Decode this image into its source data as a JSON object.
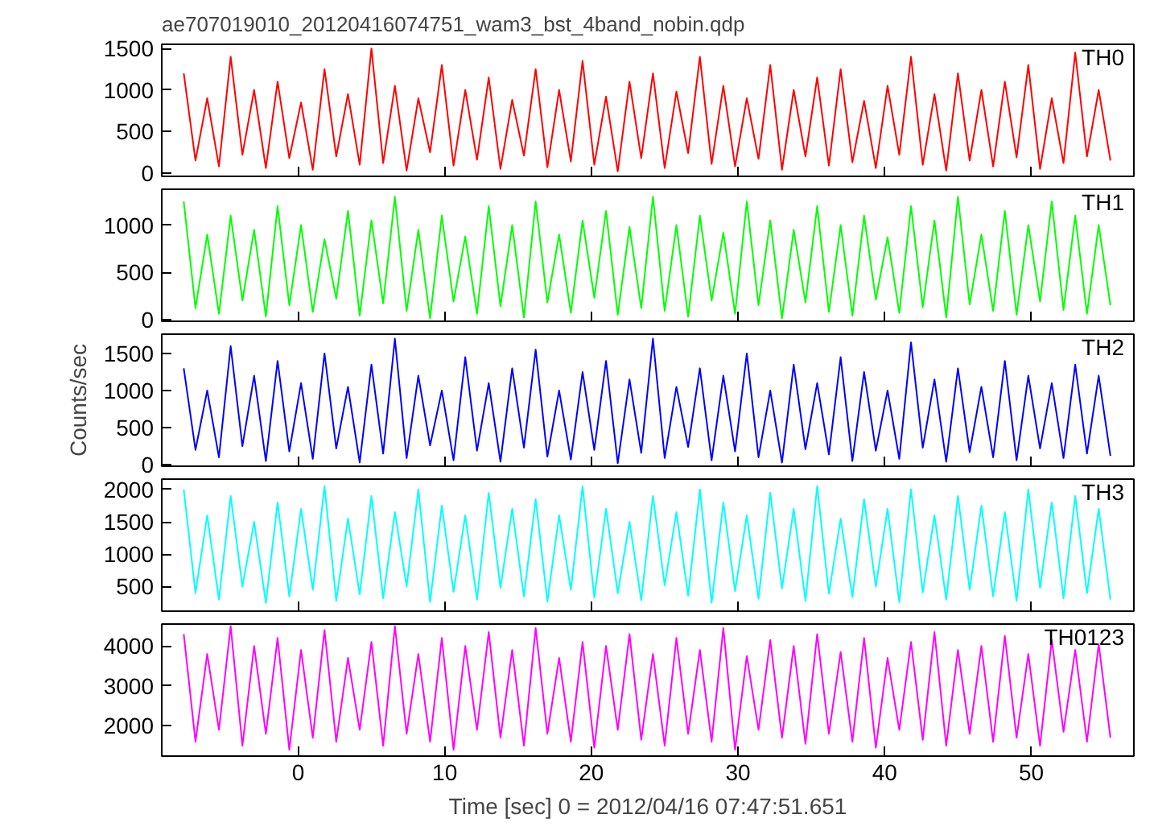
{
  "chart_data": [
    {
      "type": "line",
      "title": "ae707019010_20120416074751_wam3_bst_4band_nobin.qdp",
      "xlim": [
        -9.3,
        57
      ],
      "xticks": [
        0,
        10,
        20,
        30,
        40,
        50
      ],
      "ylim": [
        -40,
        1550
      ],
      "yticks": [
        0,
        500,
        1000,
        1500
      ],
      "tick_labels": "y",
      "grid": false,
      "series": [
        {
          "name": "TH0",
          "color": "#ff0000",
          "x": [
            -7.8,
            -7,
            -6.2,
            -5.4,
            -4.6,
            -3.8,
            -3,
            -2.2,
            -1.4,
            -0.6,
            0.2,
            1,
            1.8,
            2.6,
            3.4,
            4.2,
            5,
            5.8,
            6.6,
            7.4,
            8.2,
            9,
            9.8,
            10.6,
            11.4,
            12.2,
            13,
            13.8,
            14.6,
            15.4,
            16.2,
            17,
            17.8,
            18.6,
            19.4,
            20.2,
            21,
            21.8,
            22.6,
            23.4,
            24.2,
            25,
            25.8,
            26.6,
            27.4,
            28.2,
            29,
            29.8,
            30.6,
            31.4,
            32.2,
            33,
            33.8,
            34.6,
            35.4,
            36.2,
            37,
            37.8,
            38.6,
            39.4,
            40.2,
            41,
            41.8,
            42.6,
            43.4,
            44.2,
            45,
            45.8,
            46.6,
            47.4,
            48.2,
            49,
            49.8,
            50.6,
            51.4,
            52.2,
            53,
            53.8,
            54.6,
            55.4
          ],
          "values": [
            1200,
            150,
            900,
            80,
            1400,
            220,
            1000,
            60,
            1100,
            180,
            850,
            40,
            1250,
            200,
            950,
            100,
            1500,
            120,
            1050,
            30,
            900,
            250,
            1300,
            90,
            1000,
            160,
            1150,
            50,
            880,
            210,
            1250,
            70,
            1000,
            140,
            1350,
            100,
            920,
            20,
            1100,
            180,
            1200,
            60,
            980,
            240,
            1400,
            110,
            1050,
            80,
            900,
            170,
            1300,
            40,
            1000,
            200,
            1150,
            90,
            1250,
            130,
            870,
            60,
            1050,
            220,
            1400,
            100,
            950,
            30,
            1200,
            150,
            1000,
            80,
            1100,
            190,
            1300,
            50,
            900,
            120,
            1450,
            200,
            1000,
            150
          ]
        }
      ]
    },
    {
      "type": "line",
      "xlim": [
        -9.3,
        57
      ],
      "xticks": [
        0,
        10,
        20,
        30,
        40,
        50
      ],
      "ylim": [
        -20,
        1380
      ],
      "yticks": [
        0,
        500,
        1000
      ],
      "tick_labels": "y",
      "grid": false,
      "series": [
        {
          "name": "TH1",
          "color": "#00ff00",
          "x": [
            -7.8,
            -7,
            -6.2,
            -5.4,
            -4.6,
            -3.8,
            -3,
            -2.2,
            -1.4,
            -0.6,
            0.2,
            1,
            1.8,
            2.6,
            3.4,
            4.2,
            5,
            5.8,
            6.6,
            7.4,
            8.2,
            9,
            9.8,
            10.6,
            11.4,
            12.2,
            13,
            13.8,
            14.6,
            15.4,
            16.2,
            17,
            17.8,
            18.6,
            19.4,
            20.2,
            21,
            21.8,
            22.6,
            23.4,
            24.2,
            25,
            25.8,
            26.6,
            27.4,
            28.2,
            29,
            29.8,
            30.6,
            31.4,
            32.2,
            33,
            33.8,
            34.6,
            35.4,
            36.2,
            37,
            37.8,
            38.6,
            39.4,
            40.2,
            41,
            41.8,
            42.6,
            43.4,
            44.2,
            45,
            45.8,
            46.6,
            47.4,
            48.2,
            49,
            49.8,
            50.6,
            51.4,
            52.2,
            53,
            53.8,
            54.6,
            55.4
          ],
          "values": [
            1250,
            120,
            900,
            60,
            1100,
            200,
            950,
            30,
            1200,
            150,
            1000,
            80,
            850,
            220,
            1150,
            40,
            1050,
            170,
            1300,
            90,
            950,
            10,
            1100,
            190,
            880,
            60,
            1200,
            140,
            1000,
            20,
            1250,
            180,
            900,
            70,
            1050,
            230,
            1150,
            50,
            980,
            120,
            1300,
            90,
            1000,
            30,
            1100,
            200,
            920,
            60,
            1250,
            150,
            1050,
            10,
            950,
            180,
            1200,
            80,
            1000,
            40,
            1100,
            210,
            870,
            70,
            1200,
            130,
            1050,
            20,
            1300,
            160,
            900,
            90,
            1150,
            50,
            1000,
            190,
            1250,
            100,
            1100,
            60,
            1000,
            150
          ]
        }
      ]
    },
    {
      "type": "line",
      "ylabel": "Counts/sec",
      "xlim": [
        -9.3,
        57
      ],
      "xticks": [
        0,
        10,
        20,
        30,
        40,
        50
      ],
      "ylim": [
        -20,
        1760
      ],
      "yticks": [
        0,
        500,
        1000,
        1500
      ],
      "tick_labels": "y",
      "grid": false,
      "series": [
        {
          "name": "TH2",
          "color": "#0000ff",
          "x": [
            -7.8,
            -7,
            -6.2,
            -5.4,
            -4.6,
            -3.8,
            -3,
            -2.2,
            -1.4,
            -0.6,
            0.2,
            1,
            1.8,
            2.6,
            3.4,
            4.2,
            5,
            5.8,
            6.6,
            7.4,
            8.2,
            9,
            9.8,
            10.6,
            11.4,
            12.2,
            13,
            13.8,
            14.6,
            15.4,
            16.2,
            17,
            17.8,
            18.6,
            19.4,
            20.2,
            21,
            21.8,
            22.6,
            23.4,
            24.2,
            25,
            25.8,
            26.6,
            27.4,
            28.2,
            29,
            29.8,
            30.6,
            31.4,
            32.2,
            33,
            33.8,
            34.6,
            35.4,
            36.2,
            37,
            37.8,
            38.6,
            39.4,
            40.2,
            41,
            41.8,
            42.6,
            43.4,
            44.2,
            45,
            45.8,
            46.6,
            47.4,
            48.2,
            49,
            49.8,
            50.6,
            51.4,
            52.2,
            53,
            53.8,
            54.6,
            55.4
          ],
          "values": [
            1300,
            200,
            1000,
            100,
            1600,
            250,
            1200,
            50,
            1400,
            180,
            1100,
            80,
            1500,
            220,
            1050,
            30,
            1350,
            150,
            1700,
            90,
            1200,
            260,
            1000,
            60,
            1450,
            190,
            1100,
            40,
            1300,
            230,
            1550,
            110,
            1000,
            70,
            1250,
            200,
            1400,
            20,
            1150,
            160,
            1700,
            90,
            1050,
            240,
            1300,
            60,
            1200,
            180,
            1500,
            100,
            1000,
            30,
            1350,
            210,
            1100,
            140,
            1450,
            50,
            1250,
            190,
            1000,
            80,
            1650,
            230,
            1150,
            40,
            1300,
            170,
            1050,
            100,
            1400,
            60,
            1200,
            220,
            1100,
            90,
            1350,
            150,
            1200,
            120
          ]
        }
      ]
    },
    {
      "type": "line",
      "xlim": [
        -9.3,
        57
      ],
      "xticks": [
        0,
        10,
        20,
        30,
        40,
        50
      ],
      "ylim": [
        120,
        2160
      ],
      "yticks": [
        500,
        1000,
        1500,
        2000
      ],
      "tick_labels": "y",
      "grid": false,
      "series": [
        {
          "name": "TH3",
          "color": "#00ffff",
          "x": [
            -7.8,
            -7,
            -6.2,
            -5.4,
            -4.6,
            -3.8,
            -3,
            -2.2,
            -1.4,
            -0.6,
            0.2,
            1,
            1.8,
            2.6,
            3.4,
            4.2,
            5,
            5.8,
            6.6,
            7.4,
            8.2,
            9,
            9.8,
            10.6,
            11.4,
            12.2,
            13,
            13.8,
            14.6,
            15.4,
            16.2,
            17,
            17.8,
            18.6,
            19.4,
            20.2,
            21,
            21.8,
            22.6,
            23.4,
            24.2,
            25,
            25.8,
            26.6,
            27.4,
            28.2,
            29,
            29.8,
            30.6,
            31.4,
            32.2,
            33,
            33.8,
            34.6,
            35.4,
            36.2,
            37,
            37.8,
            38.6,
            39.4,
            40.2,
            41,
            41.8,
            42.6,
            43.4,
            44.2,
            45,
            45.8,
            46.6,
            47.4,
            48.2,
            49,
            49.8,
            50.6,
            51.4,
            52.2,
            53,
            53.8,
            54.6,
            55.4
          ],
          "values": [
            2000,
            400,
            1600,
            300,
            1900,
            500,
            1500,
            250,
            1800,
            350,
            1700,
            450,
            2050,
            280,
            1550,
            380,
            1900,
            320,
            1650,
            500,
            2000,
            260,
            1750,
            420,
            1600,
            300,
            1950,
            480,
            1700,
            350,
            1850,
            270,
            1600,
            450,
            2050,
            330,
            1700,
            400,
            1500,
            290,
            1900,
            520,
            1650,
            360,
            2000,
            250,
            1800,
            430,
            1600,
            310,
            1950,
            470,
            1700,
            280,
            2050,
            390,
            1550,
            340,
            1850,
            500,
            1700,
            260,
            2000,
            410,
            1600,
            300,
            1900,
            450,
            1750,
            350,
            1650,
            280,
            2000,
            480,
            1800,
            320,
            1900,
            400,
            1700,
            300
          ]
        }
      ]
    },
    {
      "type": "line",
      "xlabel": "Time [sec] 0 = 2012/04/16 07:47:51.651",
      "xlim": [
        -9.3,
        57
      ],
      "xticks": [
        0,
        10,
        20,
        30,
        40,
        50
      ],
      "ylim": [
        1240,
        4550
      ],
      "yticks": [
        2000,
        3000,
        4000
      ],
      "grid": false,
      "series": [
        {
          "name": "TH0123",
          "color": "#ff00ff",
          "x": [
            -7.8,
            -7,
            -6.2,
            -5.4,
            -4.6,
            -3.8,
            -3,
            -2.2,
            -1.4,
            -0.6,
            0.2,
            1,
            1.8,
            2.6,
            3.4,
            4.2,
            5,
            5.8,
            6.6,
            7.4,
            8.2,
            9,
            9.8,
            10.6,
            11.4,
            12.2,
            13,
            13.8,
            14.6,
            15.4,
            16.2,
            17,
            17.8,
            18.6,
            19.4,
            20.2,
            21,
            21.8,
            22.6,
            23.4,
            24.2,
            25,
            25.8,
            26.6,
            27.4,
            28.2,
            29,
            29.8,
            30.6,
            31.4,
            32.2,
            33,
            33.8,
            34.6,
            35.4,
            36.2,
            37,
            37.8,
            38.6,
            39.4,
            40.2,
            41,
            41.8,
            42.6,
            43.4,
            44.2,
            45,
            45.8,
            46.6,
            47.4,
            48.2,
            49,
            49.8,
            50.6,
            51.4,
            52.2,
            53,
            53.8,
            54.6,
            55.4
          ],
          "values": [
            4300,
            1600,
            3800,
            1900,
            4500,
            1500,
            4000,
            1800,
            4200,
            1400,
            3900,
            1700,
            4400,
            1600,
            3700,
            1900,
            4100,
            1500,
            4500,
            1800,
            3800,
            1600,
            4200,
            1400,
            4000,
            1900,
            4350,
            1700,
            3900,
            1500,
            4450,
            1800,
            3700,
            1600,
            4100,
            1450,
            4000,
            1900,
            4300,
            1650,
            3800,
            1500,
            4200,
            1800,
            3900,
            1600,
            4450,
            1400,
            3750,
            1900,
            4150,
            1700,
            4000,
            1550,
            4300,
            1800,
            3850,
            1600,
            4200,
            1450,
            3700,
            1900,
            4100,
            1650,
            4350,
            1500,
            3900,
            1800,
            4000,
            1600,
            4250,
            1700,
            3800,
            1500,
            4150,
            1850,
            3900,
            1600,
            4050,
            1700
          ]
        }
      ]
    }
  ]
}
